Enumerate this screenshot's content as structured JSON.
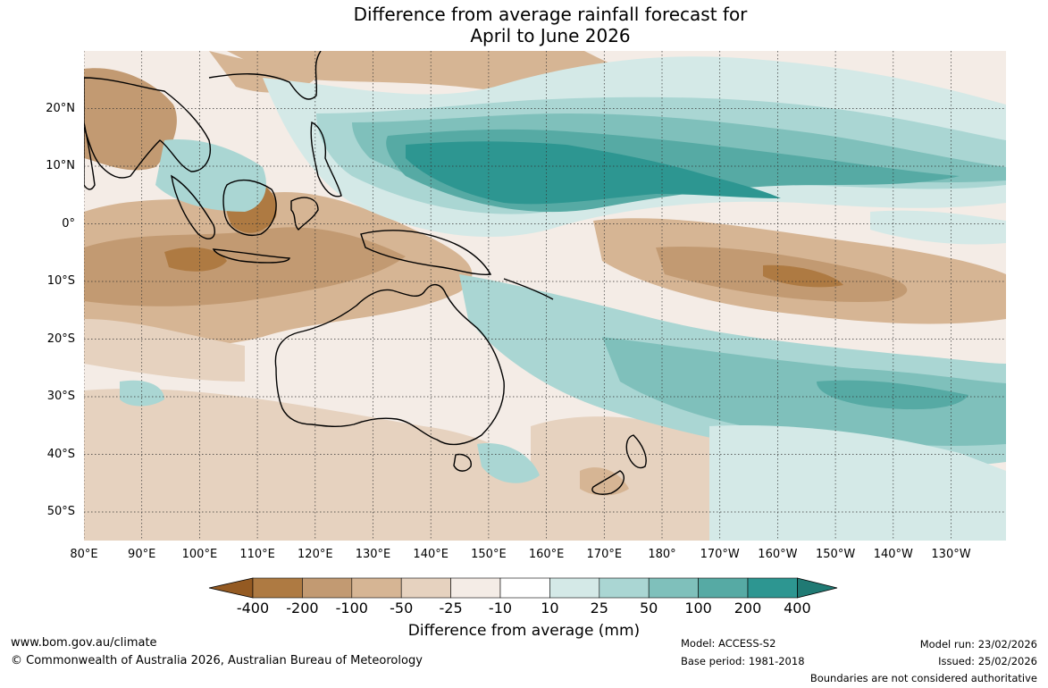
{
  "title": {
    "line1": "Difference from average rainfall forecast for",
    "line2": "April to June 2026"
  },
  "map": {
    "latitude_labels": [
      "20°N",
      "10°N",
      "0°",
      "10°S",
      "20°S",
      "30°S",
      "40°S",
      "50°S"
    ],
    "longitude_labels": [
      "80°E",
      "90°E",
      "100°E",
      "110°E",
      "120°E",
      "130°E",
      "140°E",
      "150°E",
      "160°E",
      "170°E",
      "180°",
      "170°W",
      "160°W",
      "150°W",
      "140°W",
      "130°W"
    ]
  },
  "legend": {
    "title": "Difference from average (mm)",
    "tick_labels": [
      "-400",
      "-200",
      "-100",
      "-50",
      "-25",
      "-10",
      "10",
      "25",
      "50",
      "100",
      "200",
      "400"
    ],
    "colors": [
      "#945a22",
      "#ae7a42",
      "#c29a72",
      "#d6b594",
      "#e6d2bf",
      "#f4ece6",
      "#ffffff",
      "#d4e9e7",
      "#aad6d3",
      "#7fc0bb",
      "#56aaa4",
      "#2d9691",
      "#207a74"
    ]
  },
  "footer": {
    "website": "www.bom.gov.au/climate",
    "copyright": "© Commonwealth of Australia 2026, Australian Bureau of Meteorology",
    "model": "Model: ACCESS-S2",
    "base_period": "Base period: 1981-2018",
    "model_run": "Model run: 23/02/2026",
    "issued": "Issued: 25/02/2026",
    "disclaimer": "Boundaries are not considered authoritative"
  }
}
